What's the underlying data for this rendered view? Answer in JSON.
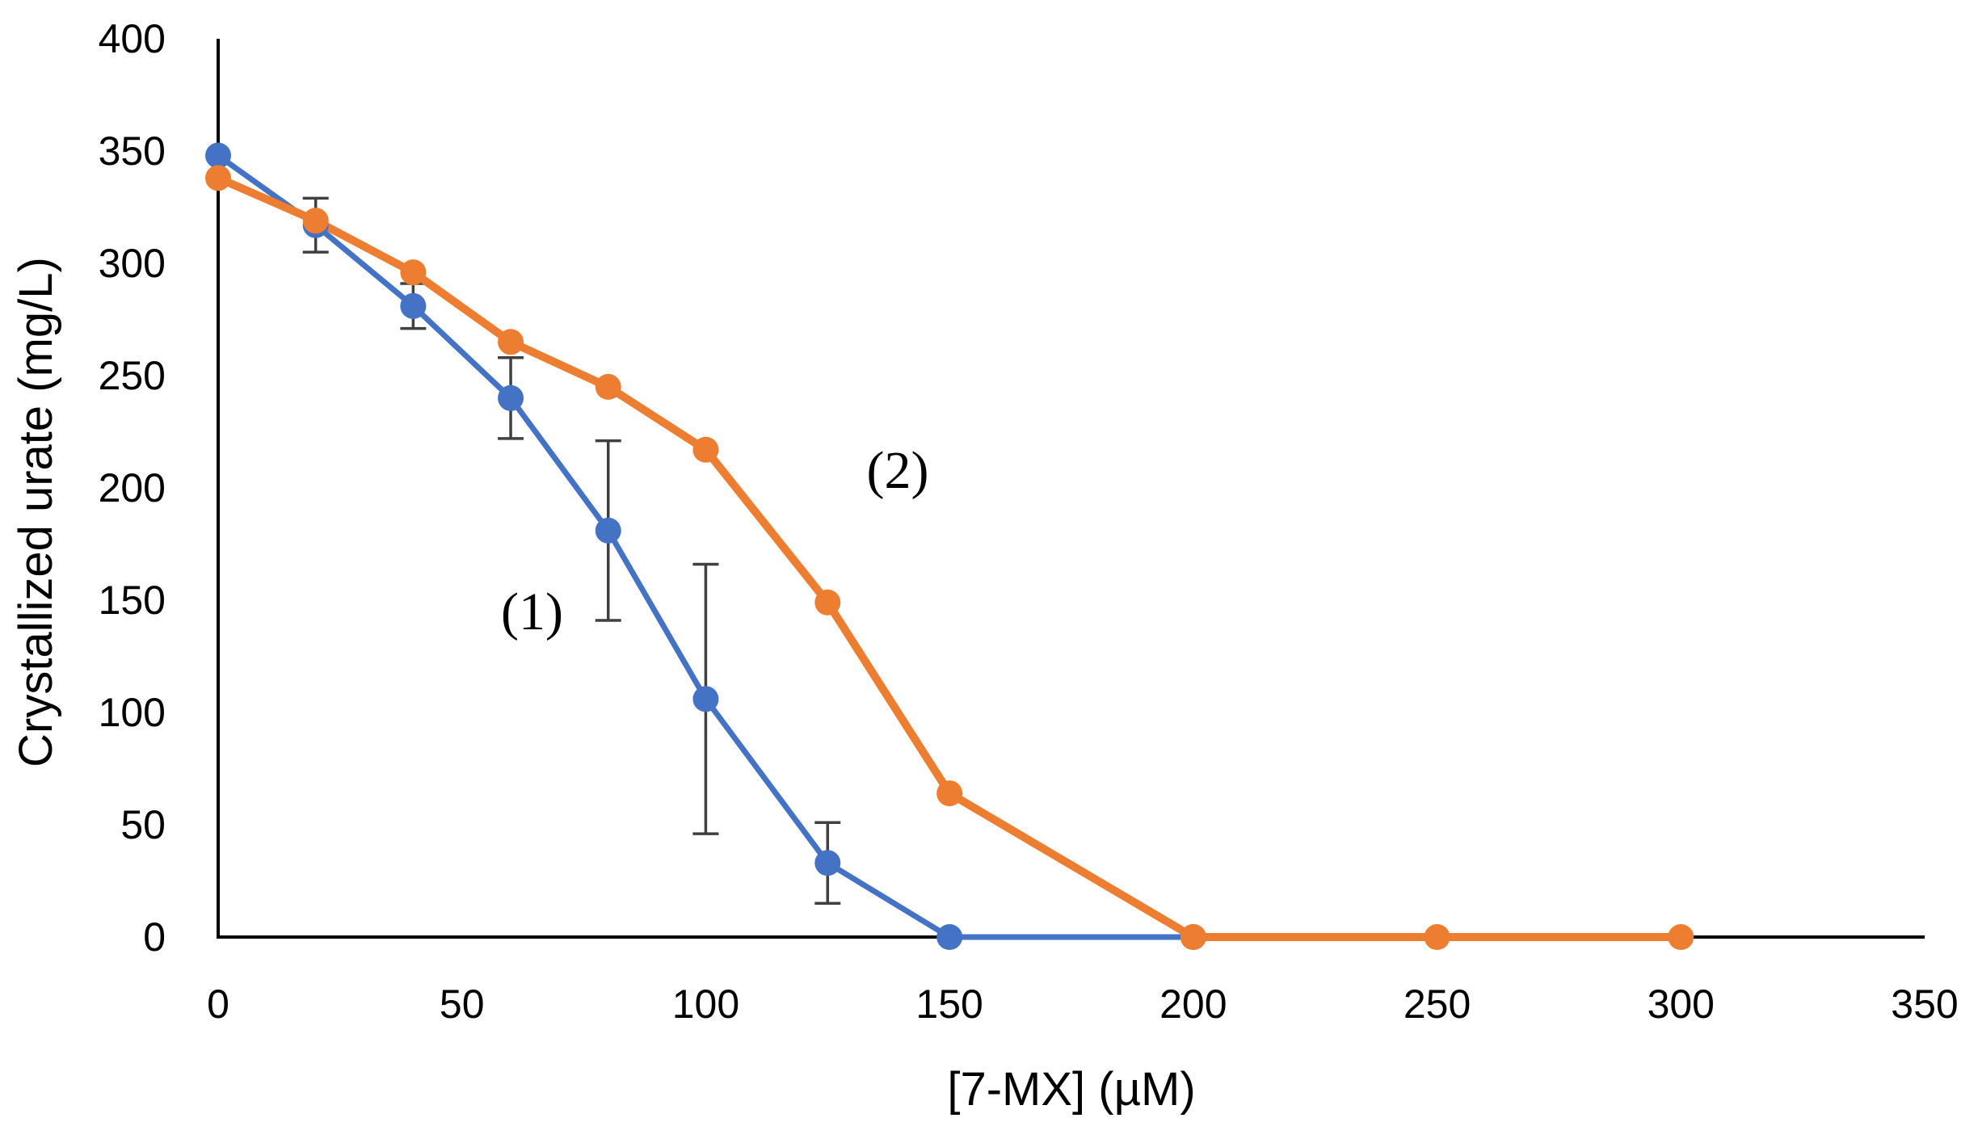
{
  "chart_data": {
    "type": "line",
    "title": "",
    "xlabel": "[7-MX] (µM)",
    "ylabel": "Crystallized urate (mg/L)",
    "xlim": [
      0,
      350
    ],
    "ylim": [
      0,
      400
    ],
    "x_ticks": [
      0,
      50,
      100,
      150,
      200,
      250,
      300,
      350
    ],
    "y_ticks": [
      0,
      50,
      100,
      150,
      200,
      250,
      300,
      350,
      400
    ],
    "x_tick_labels": [
      "0",
      "50",
      "100",
      "150",
      "200",
      "250",
      "300",
      "350"
    ],
    "y_tick_labels": [
      "0",
      "50",
      "100",
      "150",
      "200",
      "250",
      "300",
      "350",
      "400"
    ],
    "grid": false,
    "legend": "none",
    "series": [
      {
        "name": "(1)",
        "color": "#4472C4",
        "x": [
          0,
          20,
          40,
          60,
          80,
          100,
          125,
          150,
          200
        ],
        "y": [
          348,
          317,
          281,
          240,
          181,
          106,
          33,
          0,
          0
        ],
        "error": [
          null,
          12,
          10,
          18,
          40,
          60,
          18,
          null,
          null
        ]
      },
      {
        "name": "(2)",
        "color": "#ED7D31",
        "x": [
          0,
          20,
          40,
          60,
          80,
          100,
          125,
          150,
          200,
          250,
          300
        ],
        "y": [
          338,
          319,
          296,
          265,
          245,
          217,
          149,
          64,
          0,
          0,
          0
        ],
        "error": [
          null,
          null,
          null,
          null,
          null,
          null,
          null,
          null,
          null,
          null,
          null
        ]
      }
    ],
    "annotations": [
      {
        "text": "(1)",
        "series": "(1)",
        "x": 58,
        "y": 137
      },
      {
        "text": "(2)",
        "series": "(2)",
        "x": 133,
        "y": 200
      }
    ]
  }
}
